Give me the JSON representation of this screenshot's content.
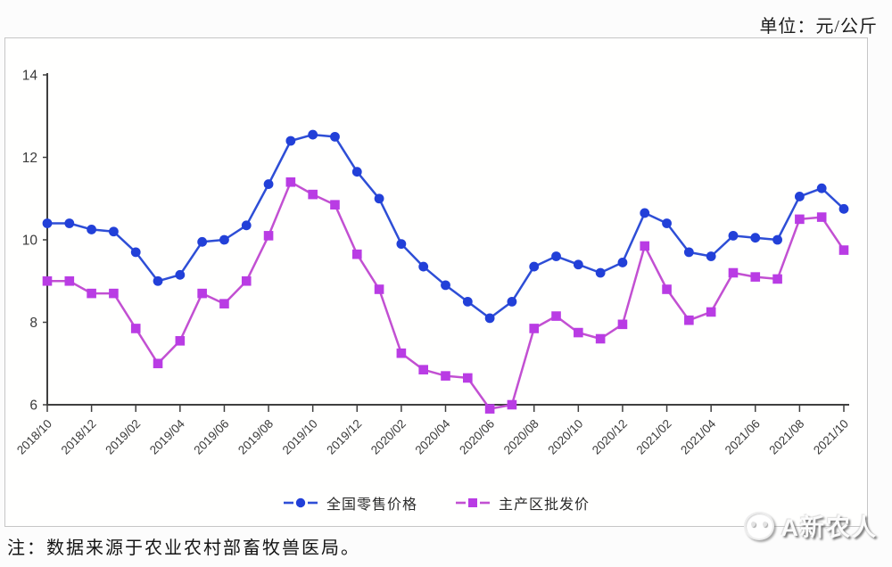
{
  "page": {
    "unit_label": "单位：元/公斤",
    "note": "注：数据来源于农业农村部畜牧兽医局。",
    "watermark": "A新农人"
  },
  "chart_data": {
    "type": "line",
    "title": "",
    "xlabel": "",
    "ylabel": "",
    "unit": "元/公斤",
    "ylim": [
      6,
      14
    ],
    "yticks": [
      6,
      8,
      10,
      12,
      14
    ],
    "grid": false,
    "legend_position": "bottom",
    "x_tick_step": 2,
    "x": [
      "2018/10",
      "2018/11",
      "2018/12",
      "2019/01",
      "2019/02",
      "2019/03",
      "2019/04",
      "2019/05",
      "2019/06",
      "2019/07",
      "2019/08",
      "2019/09",
      "2019/10",
      "2019/11",
      "2019/12",
      "2020/01",
      "2020/02",
      "2020/03",
      "2020/04",
      "2020/05",
      "2020/06",
      "2020/07",
      "2020/08",
      "2020/09",
      "2020/10",
      "2020/11",
      "2020/12",
      "2021/01",
      "2021/02",
      "2021/03",
      "2021/04",
      "2021/05",
      "2021/06",
      "2021/07",
      "2021/08",
      "2021/09",
      "2021/10"
    ],
    "series": [
      {
        "name": "全国零售价格",
        "marker": "circle",
        "line_color": "#2e4ed6",
        "marker_color": "#2240d8",
        "values": [
          10.4,
          10.4,
          10.25,
          10.2,
          9.7,
          9.0,
          9.15,
          9.95,
          10.0,
          10.35,
          11.35,
          12.4,
          12.55,
          12.5,
          11.65,
          11.0,
          9.9,
          9.35,
          8.9,
          8.5,
          8.1,
          8.5,
          9.35,
          9.6,
          9.4,
          9.2,
          9.45,
          10.65,
          10.4,
          9.7,
          9.6,
          10.1,
          10.05,
          10.0,
          11.05,
          11.25,
          10.75
        ]
      },
      {
        "name": "主产区批发价",
        "marker": "square",
        "line_color": "#c250d2",
        "marker_color": "#b93ce4",
        "values": [
          9.0,
          9.0,
          8.7,
          8.7,
          7.85,
          7.0,
          7.55,
          8.7,
          8.45,
          9.0,
          10.1,
          11.4,
          11.1,
          10.85,
          9.65,
          8.8,
          7.25,
          6.85,
          6.7,
          6.65,
          5.9,
          6.0,
          7.85,
          8.15,
          7.75,
          7.6,
          7.95,
          9.85,
          8.8,
          8.05,
          8.25,
          9.2,
          9.1,
          9.05,
          10.5,
          10.55,
          9.75
        ]
      }
    ],
    "axis_color": "#3f3f3f",
    "tick_label_color": "#3a3a3a"
  }
}
